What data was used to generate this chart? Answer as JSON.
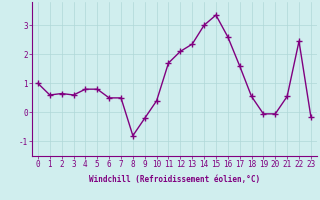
{
  "x": [
    0,
    1,
    2,
    3,
    4,
    5,
    6,
    7,
    8,
    9,
    10,
    11,
    12,
    13,
    14,
    15,
    16,
    17,
    18,
    19,
    20,
    21,
    22,
    23
  ],
  "y": [
    1.0,
    0.6,
    0.65,
    0.6,
    0.8,
    0.8,
    0.5,
    0.5,
    -0.8,
    -0.2,
    0.4,
    1.7,
    2.1,
    2.35,
    3.0,
    3.35,
    2.6,
    1.6,
    0.55,
    -0.05,
    -0.05,
    0.55,
    2.45,
    -0.15
  ],
  "line_color": "#800080",
  "marker": "+",
  "markersize": 4,
  "linewidth": 1.0,
  "markeredgewidth": 1.0,
  "xlabel": "Windchill (Refroidissement éolien,°C)",
  "xlabel_fontsize": 5.5,
  "xtick_labels": [
    "0",
    "1",
    "2",
    "3",
    "4",
    "5",
    "6",
    "7",
    "8",
    "9",
    "10",
    "11",
    "12",
    "13",
    "14",
    "15",
    "16",
    "17",
    "18",
    "19",
    "20",
    "21",
    "22",
    "23"
  ],
  "yticks": [
    -1,
    0,
    1,
    2,
    3
  ],
  "ylim": [
    -1.5,
    3.8
  ],
  "xlim": [
    -0.5,
    23.5
  ],
  "bg_color": "#d0eeee",
  "grid_color": "#b0d8d8",
  "tick_fontsize": 5.5,
  "title": ""
}
